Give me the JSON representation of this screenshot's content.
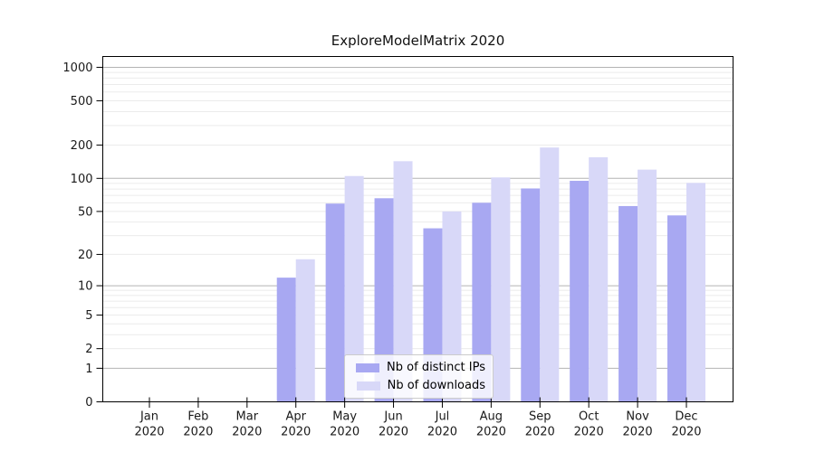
{
  "chart_data": {
    "type": "bar",
    "title": "ExploreModelMatrix 2020",
    "x_year": "2020",
    "categories": [
      "Jan",
      "Feb",
      "Mar",
      "Apr",
      "May",
      "Jun",
      "Jul",
      "Aug",
      "Sep",
      "Oct",
      "Nov",
      "Dec"
    ],
    "series": [
      {
        "name": "Nb of distinct IPs",
        "color": "#a8a8f2",
        "values": [
          0,
          0,
          0,
          12,
          59,
          66,
          35,
          60,
          81,
          95,
          56,
          46
        ]
      },
      {
        "name": "Nb of downloads",
        "color": "#d8d8f8",
        "values": [
          0,
          0,
          0,
          18,
          105,
          143,
          50,
          102,
          190,
          155,
          120,
          91
        ]
      }
    ],
    "yscale": "log1p",
    "yticks": [
      0,
      1,
      2,
      5,
      10,
      20,
      50,
      100,
      200,
      500,
      1000
    ],
    "ylim": [
      0,
      1260
    ],
    "grid": "horizontal",
    "legend_position": "bottom-center-inside",
    "colors": {
      "grid_major": "#b3b3b3",
      "grid_minor": "#ebebeb",
      "axis": "#000000",
      "text": "#1a1a1a"
    }
  }
}
